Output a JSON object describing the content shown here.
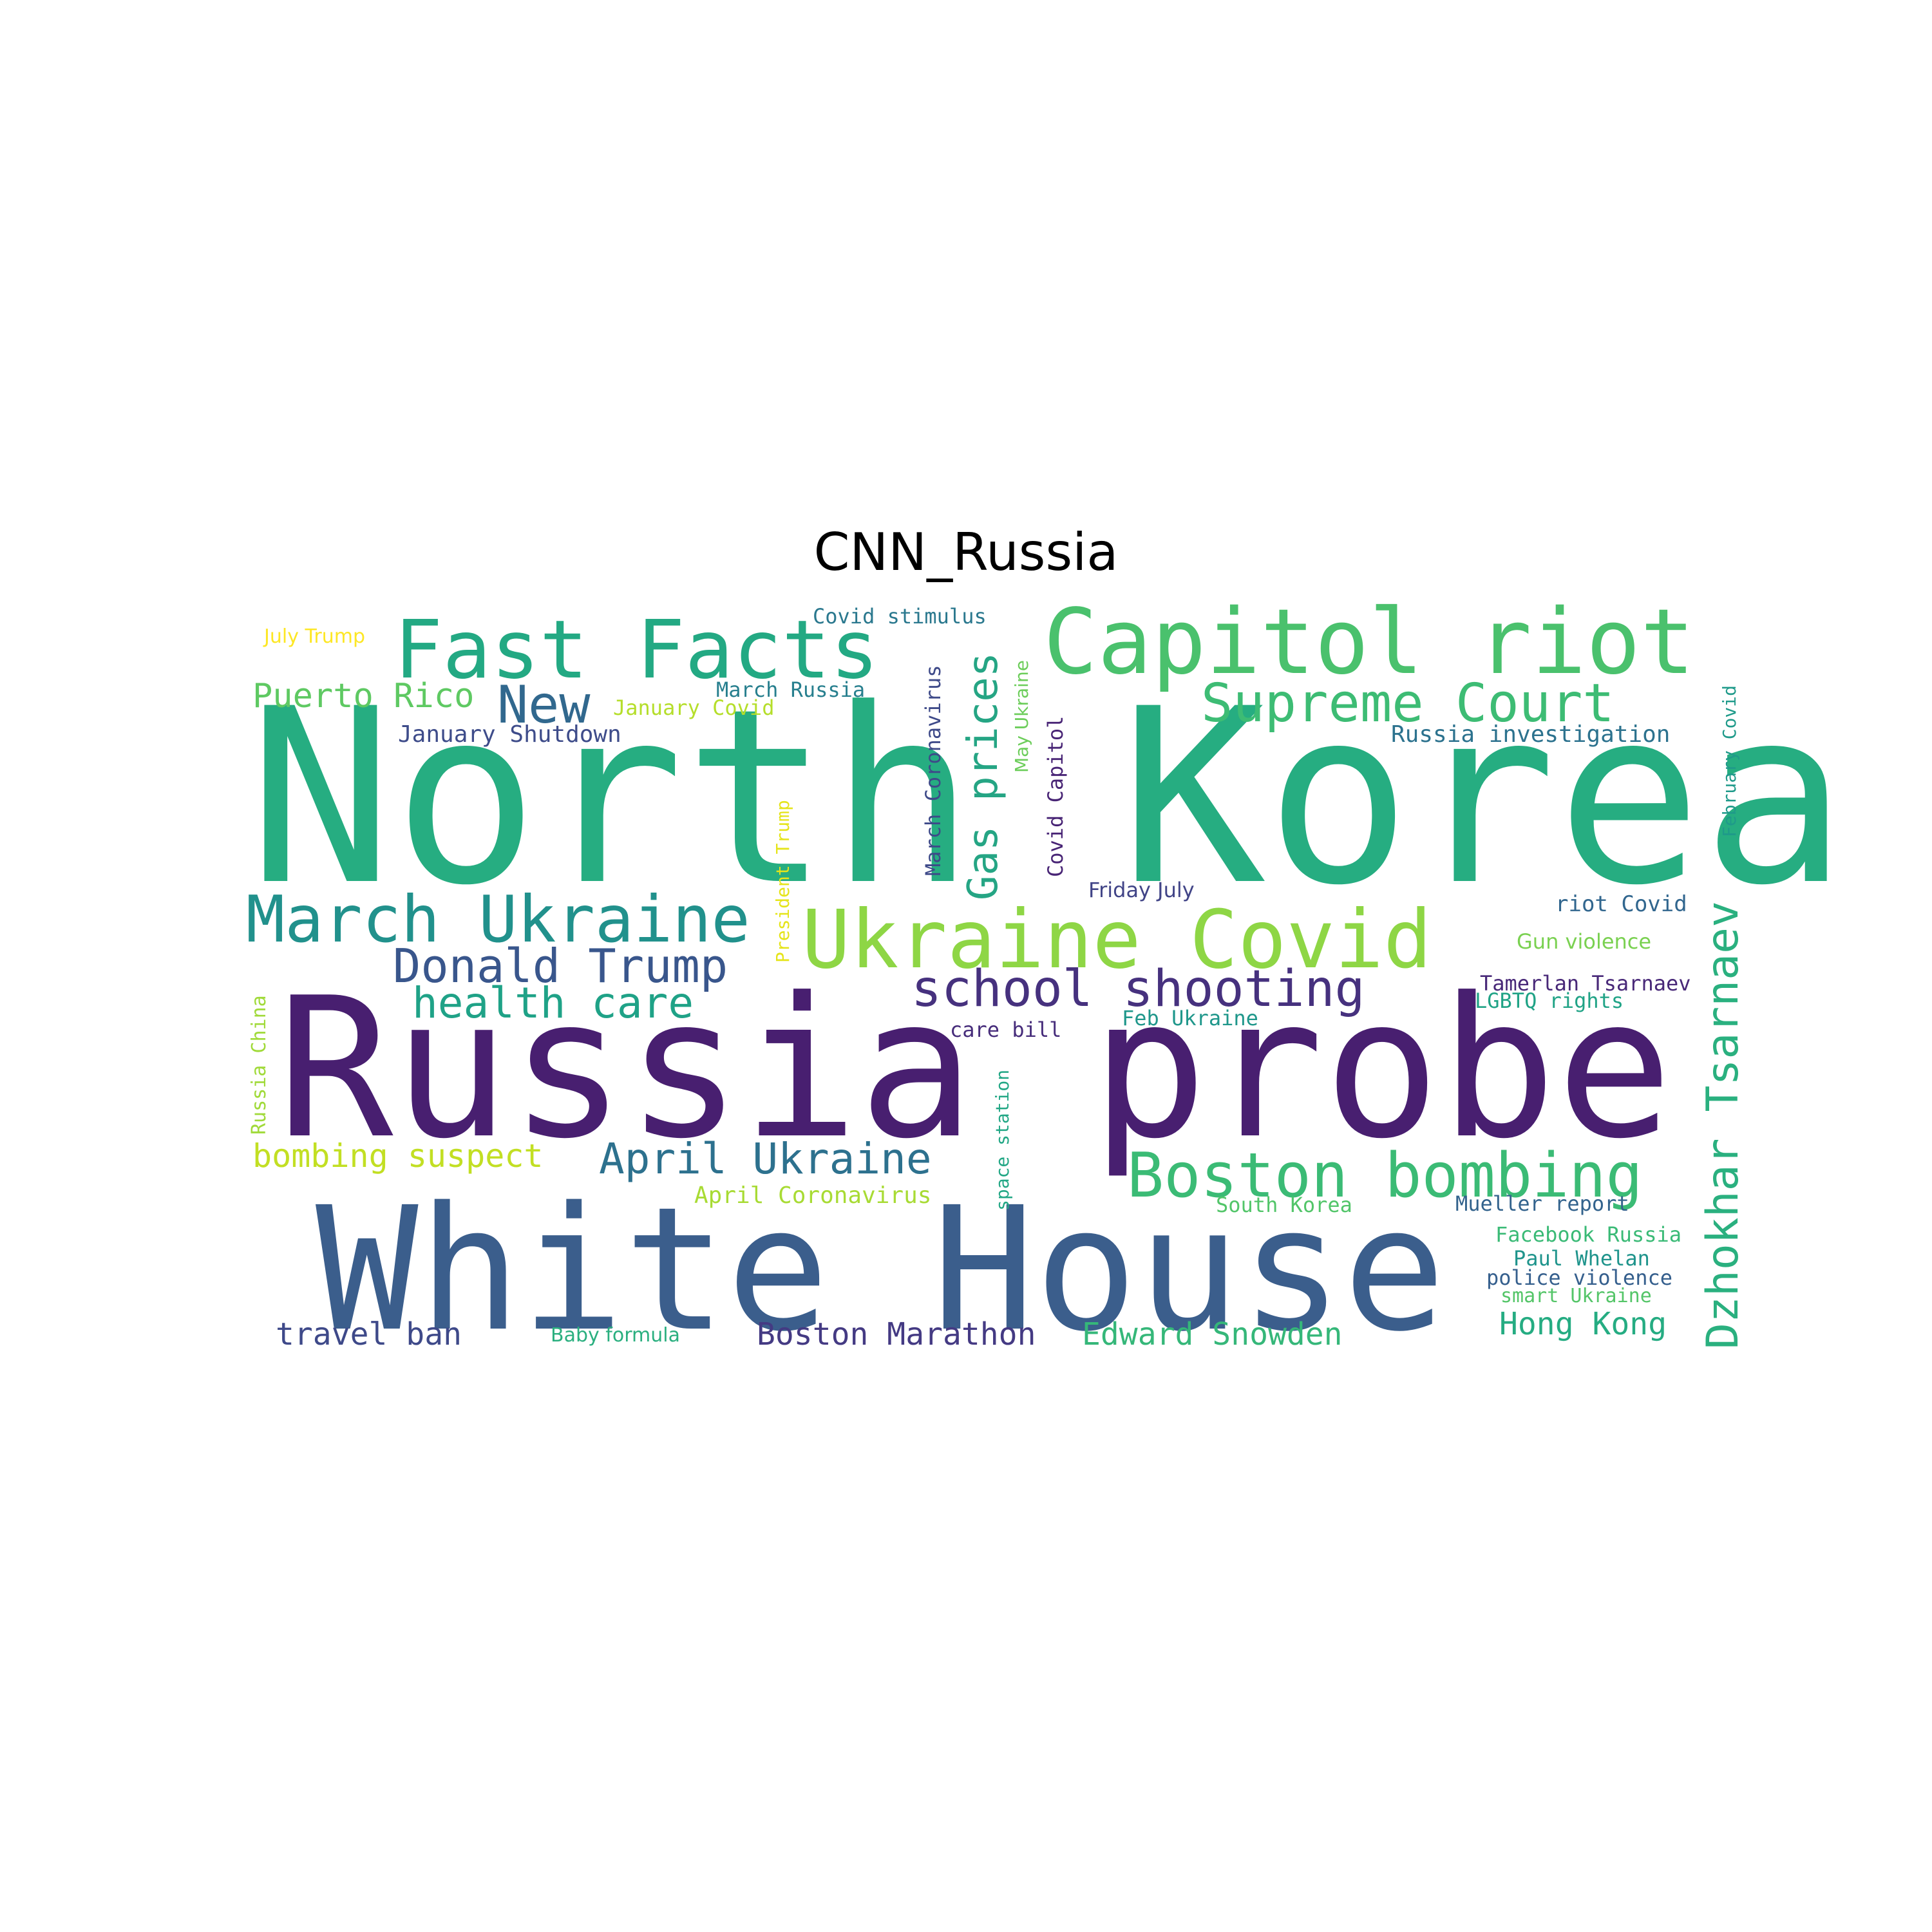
{
  "title": "CNN_Russia",
  "words": [
    {
      "text": "North Korea",
      "color": "#26ad81"
    },
    {
      "text": "Russia probe",
      "color": "#481f70"
    },
    {
      "text": "White House",
      "color": "#3b5e8c"
    },
    {
      "text": "Capitol riot",
      "color": "#4ac16d"
    },
    {
      "text": "Fast Facts",
      "color": "#23a983"
    },
    {
      "text": "Ukraine Covid",
      "color": "#8ed645"
    },
    {
      "text": "March Ukraine",
      "color": "#21918c"
    },
    {
      "text": "Boston bombing",
      "color": "#3bbb75"
    },
    {
      "text": "Supreme Court",
      "color": "#3dbc74"
    },
    {
      "text": "Dzhokhar Tsarnaev",
      "color": "#2ab07f"
    },
    {
      "text": "school shooting",
      "color": "#46317e"
    },
    {
      "text": "Donald Trump",
      "color": "#39568c"
    },
    {
      "text": "Gas prices",
      "color": "#25a584"
    },
    {
      "text": "New",
      "color": "#31688e"
    },
    {
      "text": "health care",
      "color": "#1fa287"
    },
    {
      "text": "April Ukraine",
      "color": "#2d718e"
    },
    {
      "text": "Puerto Rico",
      "color": "#5ec962"
    },
    {
      "text": "bombing suspect",
      "color": "#c2df23"
    },
    {
      "text": "Boston Marathon",
      "color": "#443a83"
    },
    {
      "text": "Edward Snowden",
      "color": "#35b779"
    },
    {
      "text": "travel ban",
      "color": "#3e4989"
    },
    {
      "text": "Hong Kong",
      "color": "#25ac82"
    },
    {
      "text": "Covid stimulus",
      "color": "#2a788e"
    },
    {
      "text": "July Trump",
      "color": "#fde725"
    },
    {
      "text": "March Russia",
      "color": "#277f8e"
    },
    {
      "text": "January Covid",
      "color": "#b5de2b"
    },
    {
      "text": "January Shutdown",
      "color": "#3e4c8a"
    },
    {
      "text": "March Coronavirus",
      "color": "#3e4a89"
    },
    {
      "text": "May Ukraine",
      "color": "#6ccd5a"
    },
    {
      "text": "Covid Capitol",
      "color": "#482475"
    },
    {
      "text": "President Trump",
      "color": "#e5e419"
    },
    {
      "text": "Russia investigation",
      "color": "#2c728e"
    },
    {
      "text": "February Covid",
      "color": "#1f9a8a"
    },
    {
      "text": "Friday July",
      "color": "#414487"
    },
    {
      "text": "riot Covid",
      "color": "#31668e"
    },
    {
      "text": "Gun violence",
      "color": "#7ad151"
    },
    {
      "text": "Tamerlan Tsarnaev",
      "color": "#482878"
    },
    {
      "text": "LGBTQ rights",
      "color": "#20a386"
    },
    {
      "text": "care bill",
      "color": "#472d7b"
    },
    {
      "text": "Feb Ukraine",
      "color": "#1f978b"
    },
    {
      "text": "Russia China",
      "color": "#a0da39"
    },
    {
      "text": "space station",
      "color": "#22a785"
    },
    {
      "text": "April Coronavirus",
      "color": "#a8db34"
    },
    {
      "text": "South Korea",
      "color": "#52c569"
    },
    {
      "text": "Mueller report",
      "color": "#33638d"
    },
    {
      "text": "Facebook Russia",
      "color": "#3aba76"
    },
    {
      "text": "Paul Whelan",
      "color": "#1f948c"
    },
    {
      "text": "police violence",
      "color": "#355f8d"
    },
    {
      "text": "smart Ukraine",
      "color": "#54c568"
    },
    {
      "text": "Baby formula",
      "color": "#2aaf7f"
    }
  ]
}
